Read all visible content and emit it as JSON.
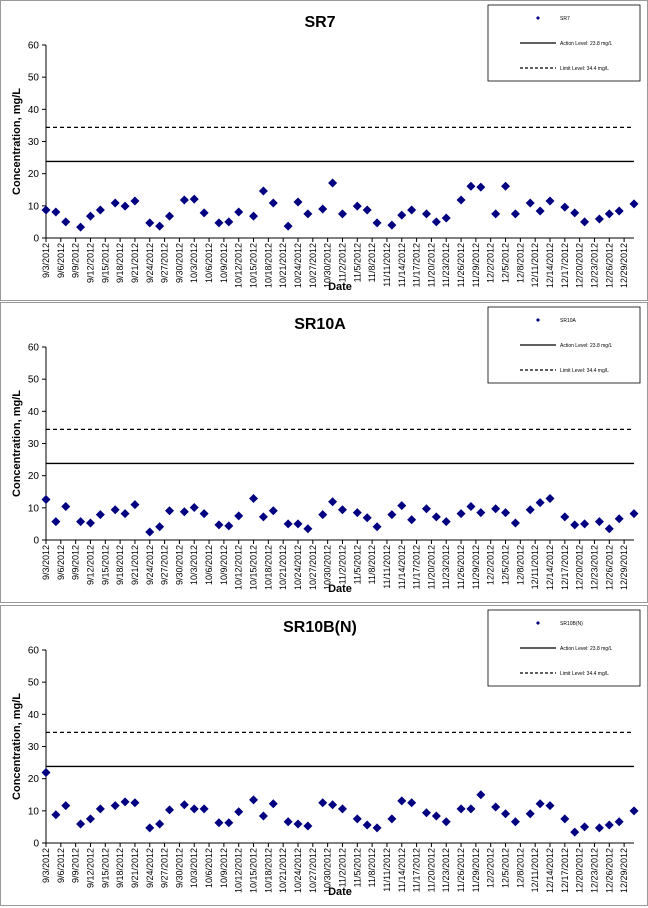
{
  "chart_data": [
    {
      "type": "scatter",
      "title": "SR7",
      "xlabel": "Date",
      "ylabel": "Concentration, mg/L",
      "x": [
        "9/3/2012",
        "9/5/2012",
        "9/7/2012",
        "9/10/2012",
        "9/12/2012",
        "9/14/2012",
        "9/17/2012",
        "9/19/2012",
        "9/21/2012",
        "9/24/2012",
        "9/26/2012",
        "9/28/2012",
        "10/1/2012",
        "10/3/2012",
        "10/5/2012",
        "10/8/2012",
        "10/10/2012",
        "10/12/2012",
        "10/15/2012",
        "10/17/2012",
        "10/19/2012",
        "10/22/2012",
        "10/24/2012",
        "10/26/2012",
        "10/29/2012",
        "10/31/2012",
        "11/2/2012",
        "11/5/2012",
        "11/7/2012",
        "11/9/2012",
        "11/12/2012",
        "11/14/2012",
        "11/16/2012",
        "11/19/2012",
        "11/21/2012",
        "11/23/2012",
        "11/26/2012",
        "11/28/2012",
        "11/30/2012",
        "12/3/2012",
        "12/5/2012",
        "12/7/2012",
        "12/10/2012",
        "12/12/2012",
        "12/14/2012",
        "12/17/2012",
        "12/19/2012",
        "12/21/2012",
        "12/24/2012",
        "12/26/2012",
        "12/28/2012",
        "12/31/2012"
      ],
      "series": [
        {
          "name": "SR7",
          "color": "#000080",
          "values": [
            8.7,
            8.1,
            5.0,
            3.4,
            6.8,
            8.7,
            10.9,
            9.9,
            11.5,
            4.7,
            3.7,
            6.8,
            11.8,
            12.1,
            7.8,
            4.7,
            5.0,
            8.1,
            6.8,
            14.6,
            10.9,
            3.7,
            11.2,
            7.5,
            9.0,
            17.1,
            7.5,
            9.9,
            8.7,
            4.7,
            4.0,
            7.1,
            8.7,
            7.5,
            5.0,
            6.2,
            11.8,
            16.1,
            15.8,
            7.5,
            16.1,
            7.5,
            10.9,
            8.4,
            11.5,
            9.6,
            7.8,
            5.0,
            5.9,
            7.5,
            8.4,
            10.6
          ]
        }
      ],
      "lines": [
        {
          "name": "Action Level: 23.8 mg/L",
          "value": 23.8,
          "style": "solid"
        },
        {
          "name": "Limit Level: 34.4 mg/L",
          "value": 34.4,
          "style": "dashed"
        }
      ],
      "xlim": [
        "9/3/2012",
        "12/31/2012"
      ],
      "xticks": [
        "9/3/2012",
        "9/6/2012",
        "9/9/2012",
        "9/12/2012",
        "9/15/2012",
        "9/18/2012",
        "9/21/2012",
        "9/24/2012",
        "9/27/2012",
        "9/30/2012",
        "10/3/2012",
        "10/6/2012",
        "10/9/2012",
        "10/12/2012",
        "10/15/2012",
        "10/18/2012",
        "10/21/2012",
        "10/24/2012",
        "10/27/2012",
        "10/30/2012",
        "11/2/2012",
        "11/5/2012",
        "11/8/2012",
        "11/11/2012",
        "11/14/2012",
        "11/17/2012",
        "11/20/2012",
        "11/23/2012",
        "11/26/2012",
        "11/29/2012",
        "12/2/2012",
        "12/5/2012",
        "12/8/2012",
        "12/11/2012",
        "12/14/2012",
        "12/17/2012",
        "12/20/2012",
        "12/23/2012",
        "12/26/2012",
        "12/29/2012"
      ],
      "ylim": [
        0,
        60
      ],
      "yticks": [
        0,
        10,
        20,
        30,
        40,
        50,
        60
      ],
      "legend": "upper right"
    },
    {
      "type": "scatter",
      "title": "SR10A",
      "xlabel": "Date",
      "ylabel": "Concentration, mg/L",
      "x": [
        "9/3/2012",
        "9/5/2012",
        "9/7/2012",
        "9/10/2012",
        "9/12/2012",
        "9/14/2012",
        "9/17/2012",
        "9/19/2012",
        "9/21/2012",
        "9/24/2012",
        "9/26/2012",
        "9/28/2012",
        "10/1/2012",
        "10/3/2012",
        "10/5/2012",
        "10/8/2012",
        "10/10/2012",
        "10/12/2012",
        "10/15/2012",
        "10/17/2012",
        "10/19/2012",
        "10/22/2012",
        "10/24/2012",
        "10/26/2012",
        "10/29/2012",
        "10/31/2012",
        "11/2/2012",
        "11/5/2012",
        "11/7/2012",
        "11/9/2012",
        "11/12/2012",
        "11/14/2012",
        "11/16/2012",
        "11/19/2012",
        "11/21/2012",
        "11/23/2012",
        "11/26/2012",
        "11/28/2012",
        "11/30/2012",
        "12/3/2012",
        "12/5/2012",
        "12/7/2012",
        "12/10/2012",
        "12/12/2012",
        "12/14/2012",
        "12/17/2012",
        "12/19/2012",
        "12/21/2012",
        "12/24/2012",
        "12/26/2012",
        "12/28/2012",
        "12/31/2012"
      ],
      "series": [
        {
          "name": "SR10A",
          "color": "#000080",
          "values": [
            12.6,
            5.7,
            10.4,
            5.7,
            5.3,
            7.9,
            9.4,
            8.2,
            11.0,
            2.5,
            4.1,
            9.1,
            8.8,
            10.1,
            8.2,
            4.7,
            4.4,
            7.5,
            12.9,
            7.2,
            9.1,
            5.0,
            5.0,
            3.5,
            7.9,
            11.9,
            9.4,
            8.5,
            6.9,
            4.1,
            7.9,
            10.7,
            6.3,
            9.7,
            7.2,
            5.7,
            8.2,
            10.4,
            8.5,
            9.7,
            8.5,
            5.3,
            9.4,
            11.6,
            12.9,
            7.2,
            4.7,
            5.0,
            5.7,
            3.5,
            6.6,
            8.2
          ]
        }
      ],
      "lines": [
        {
          "name": "Action Level: 23.8 mg/L",
          "value": 23.8,
          "style": "solid"
        },
        {
          "name": "Limit Level: 34.4 mg/L",
          "value": 34.4,
          "style": "dashed"
        }
      ],
      "xlim": [
        "9/3/2012",
        "12/31/2012"
      ],
      "xticks": [
        "9/3/2012",
        "9/6/2012",
        "9/9/2012",
        "9/12/2012",
        "9/15/2012",
        "9/18/2012",
        "9/21/2012",
        "9/24/2012",
        "9/27/2012",
        "9/30/2012",
        "10/3/2012",
        "10/6/2012",
        "10/9/2012",
        "10/12/2012",
        "10/15/2012",
        "10/18/2012",
        "10/21/2012",
        "10/24/2012",
        "10/27/2012",
        "10/30/2012",
        "11/2/2012",
        "11/5/2012",
        "11/8/2012",
        "11/11/2012",
        "11/14/2012",
        "11/17/2012",
        "11/20/2012",
        "11/23/2012",
        "11/26/2012",
        "11/29/2012",
        "12/2/2012",
        "12/5/2012",
        "12/8/2012",
        "12/11/2012",
        "12/14/2012",
        "12/17/2012",
        "12/20/2012",
        "12/23/2012",
        "12/26/2012",
        "12/29/2012"
      ],
      "ylim": [
        0,
        60
      ],
      "yticks": [
        0,
        10,
        20,
        30,
        40,
        50,
        60
      ],
      "legend": "upper right"
    },
    {
      "type": "scatter",
      "title": "SR10B(N)",
      "xlabel": "Date",
      "ylabel": "Concentration, mg/L",
      "x": [
        "9/3/2012",
        "9/5/2012",
        "9/7/2012",
        "9/10/2012",
        "9/12/2012",
        "9/14/2012",
        "9/17/2012",
        "9/19/2012",
        "9/21/2012",
        "9/24/2012",
        "9/26/2012",
        "9/28/2012",
        "10/1/2012",
        "10/3/2012",
        "10/5/2012",
        "10/8/2012",
        "10/10/2012",
        "10/12/2012",
        "10/15/2012",
        "10/17/2012",
        "10/19/2012",
        "10/22/2012",
        "10/24/2012",
        "10/26/2012",
        "10/29/2012",
        "10/31/2012",
        "11/2/2012",
        "11/5/2012",
        "11/7/2012",
        "11/9/2012",
        "11/12/2012",
        "11/14/2012",
        "11/16/2012",
        "11/19/2012",
        "11/21/2012",
        "11/23/2012",
        "11/26/2012",
        "11/28/2012",
        "11/30/2012",
        "12/3/2012",
        "12/5/2012",
        "12/7/2012",
        "12/10/2012",
        "12/12/2012",
        "12/14/2012",
        "12/17/2012",
        "12/19/2012",
        "12/21/2012",
        "12/24/2012",
        "12/26/2012",
        "12/28/2012",
        "12/31/2012"
      ],
      "series": [
        {
          "name": "SR10B(N)",
          "color": "#000080",
          "values": [
            21.9,
            8.8,
            11.6,
            5.9,
            7.5,
            10.6,
            11.6,
            12.8,
            12.5,
            4.7,
            5.9,
            10.3,
            11.9,
            10.6,
            10.6,
            6.3,
            6.3,
            9.7,
            13.4,
            8.4,
            12.2,
            6.6,
            5.9,
            5.3,
            12.5,
            11.9,
            10.6,
            7.5,
            5.6,
            4.7,
            7.5,
            13.1,
            12.5,
            9.4,
            8.4,
            6.6,
            10.6,
            10.6,
            15.0,
            11.2,
            9.1,
            6.6,
            9.1,
            12.2,
            11.6,
            7.5,
            3.4,
            5.0,
            4.7,
            5.6,
            6.6,
            10.0
          ]
        }
      ],
      "lines": [
        {
          "name": "Action Level: 23.8 mg/L",
          "value": 23.8,
          "style": "solid"
        },
        {
          "name": "Limit Level: 34.4 mg/L",
          "value": 34.4,
          "style": "dashed"
        }
      ],
      "xlim": [
        "9/3/2012",
        "12/31/2012"
      ],
      "xticks": [
        "9/3/2012",
        "9/6/2012",
        "9/9/2012",
        "9/12/2012",
        "9/15/2012",
        "9/18/2012",
        "9/21/2012",
        "9/24/2012",
        "9/27/2012",
        "9/30/2012",
        "10/3/2012",
        "10/6/2012",
        "10/9/2012",
        "10/12/2012",
        "10/15/2012",
        "10/18/2012",
        "10/21/2012",
        "10/24/2012",
        "10/27/2012",
        "10/30/2012",
        "11/2/2012",
        "11/5/2012",
        "11/8/2012",
        "11/11/2012",
        "11/14/2012",
        "11/17/2012",
        "11/20/2012",
        "11/23/2012",
        "11/26/2012",
        "11/29/2012",
        "12/2/2012",
        "12/5/2012",
        "12/8/2012",
        "12/11/2012",
        "12/14/2012",
        "12/17/2012",
        "12/20/2012",
        "12/23/2012",
        "12/26/2012",
        "12/29/2012"
      ],
      "ylim": [
        0,
        60
      ],
      "yticks": [
        0,
        10,
        20,
        30,
        40,
        50,
        60
      ],
      "legend": "upper right"
    }
  ]
}
